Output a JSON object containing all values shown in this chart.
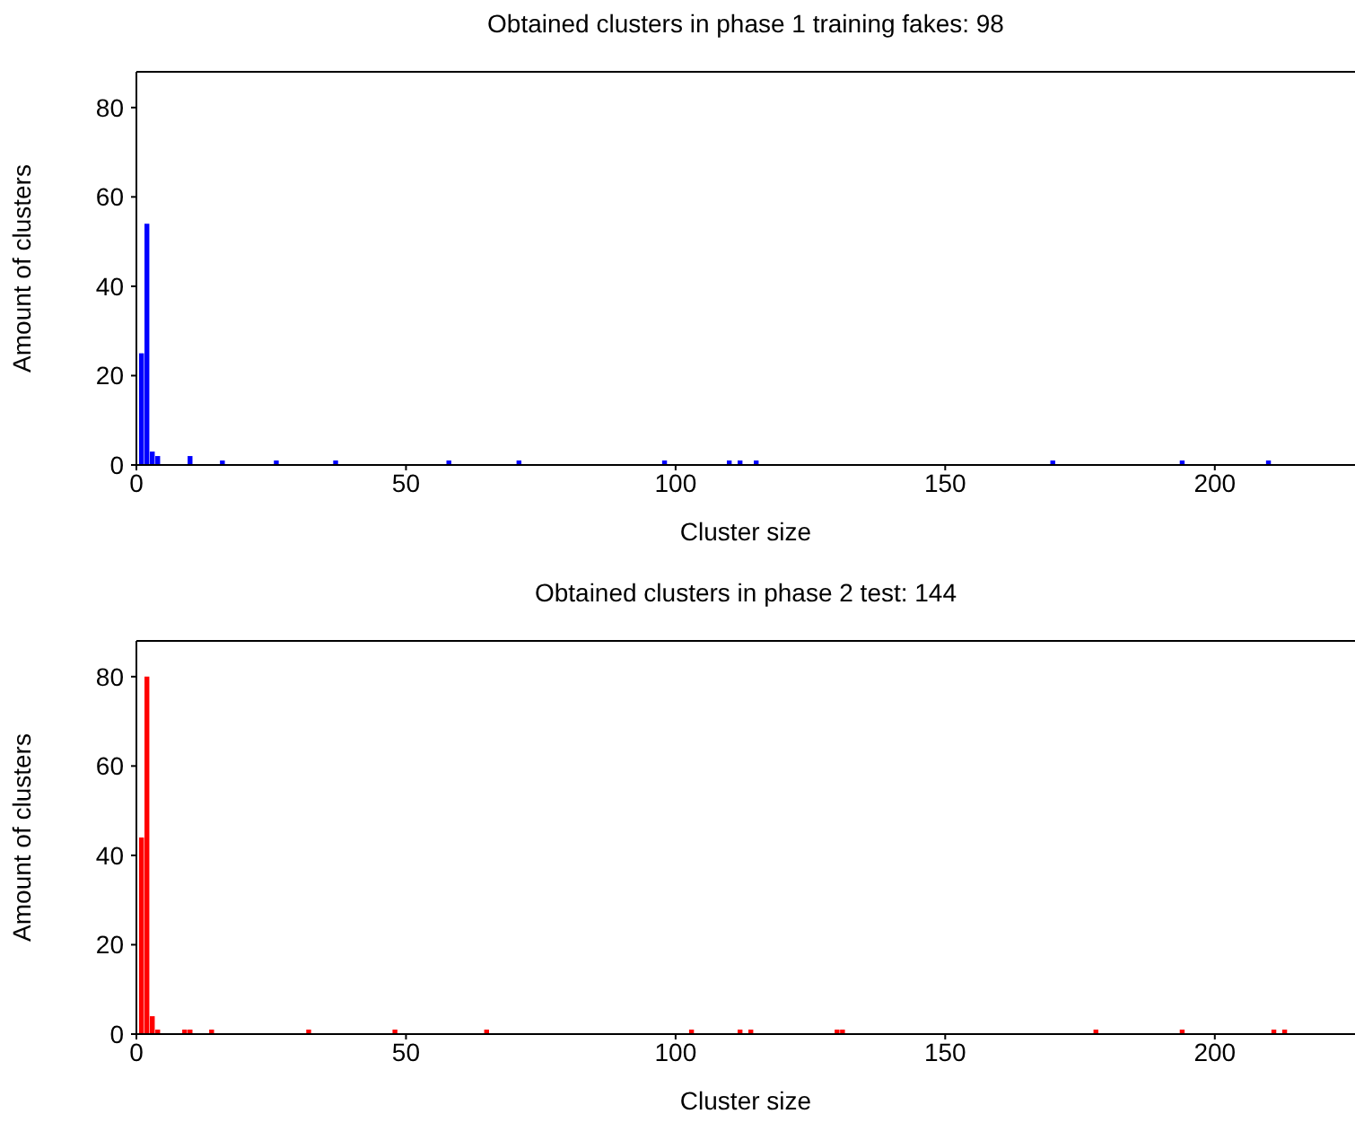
{
  "chart_data": [
    {
      "type": "bar",
      "title": "Obtained clusters in phase 1 training fakes: 98",
      "xlabel": "Cluster size",
      "ylabel": "Amount of clusters",
      "x": [
        1,
        2,
        3,
        4,
        10,
        16,
        26,
        37,
        58,
        71,
        98,
        110,
        112,
        115,
        170,
        194,
        210
      ],
      "values": [
        25,
        54,
        3,
        2,
        2,
        1,
        1,
        1,
        1,
        1,
        1,
        1,
        1,
        1,
        1,
        1,
        1
      ],
      "color": "#0000ff",
      "xlim": [
        0,
        226
      ],
      "xticks": [
        0,
        50,
        100,
        150,
        200
      ],
      "ylim": [
        0,
        88
      ],
      "yticks": [
        0,
        20,
        40,
        60,
        80
      ]
    },
    {
      "type": "bar",
      "title": "Obtained clusters in phase 2 test: 144",
      "xlabel": "Cluster size",
      "ylabel": "Amount of clusters",
      "x": [
        1,
        2,
        3,
        4,
        9,
        10,
        14,
        32,
        48,
        65,
        103,
        112,
        114,
        130,
        131,
        178,
        194,
        211,
        213
      ],
      "values": [
        44,
        80,
        4,
        1,
        1,
        1,
        1,
        1,
        1,
        1,
        1,
        1,
        1,
        1,
        1,
        1,
        1,
        1,
        1
      ],
      "color": "#ff0000",
      "xlim": [
        0,
        226
      ],
      "xticks": [
        0,
        50,
        100,
        150,
        200
      ],
      "ylim": [
        0,
        88
      ],
      "yticks": [
        0,
        20,
        40,
        60,
        80
      ]
    }
  ]
}
